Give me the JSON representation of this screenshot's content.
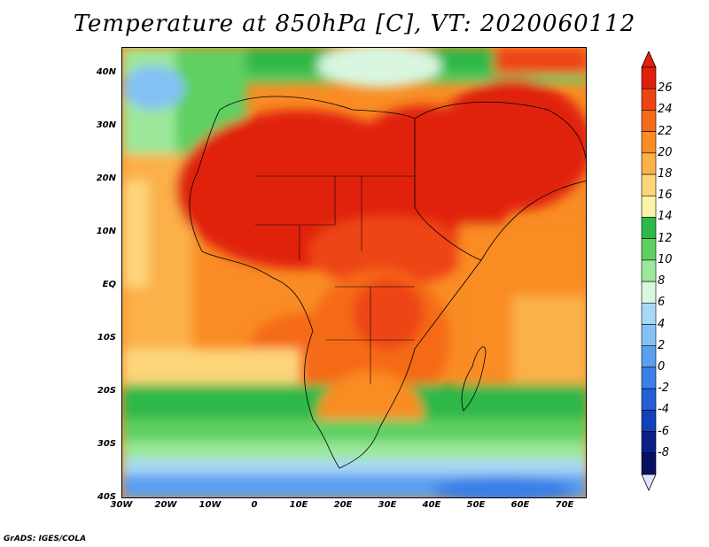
{
  "title": "Temperature at 850hPa [C], VT: 2020060112",
  "credit": "GrADS: IGES/COLA",
  "map": {
    "lat_labels": [
      "40N",
      "30N",
      "20N",
      "10N",
      "EQ",
      "10S",
      "20S",
      "30S",
      "40S"
    ],
    "lon_labels": [
      "30W",
      "20W",
      "10W",
      "0",
      "10E",
      "20E",
      "30E",
      "40E",
      "50E",
      "60E",
      "70E"
    ],
    "lat_range": [
      -40,
      45
    ],
    "lon_range": [
      -30,
      75
    ],
    "field": "temperature-850hPa-celsius"
  },
  "colorbar": {
    "levels": [
      "26",
      "24",
      "22",
      "20",
      "18",
      "16",
      "14",
      "12",
      "10",
      "8",
      "6",
      "4",
      "2",
      "0",
      "-2",
      "-4",
      "-6",
      "-8"
    ],
    "colors": [
      "#e0200c",
      "#ee4412",
      "#f56a18",
      "#f98c24",
      "#fbb04a",
      "#fdd57a",
      "#fbf3a6",
      "#2fb84a",
      "#5fd062",
      "#9de89a",
      "#d8f6e0",
      "#a9d8f6",
      "#84c1f4",
      "#5a9ff0",
      "#3b7fe8",
      "#2560d6",
      "#1440b8",
      "#0a2088",
      "#0a1060"
    ],
    "top_arrow_color": "#e0200c",
    "bottom_arrow_color": "#e0e4ff"
  }
}
